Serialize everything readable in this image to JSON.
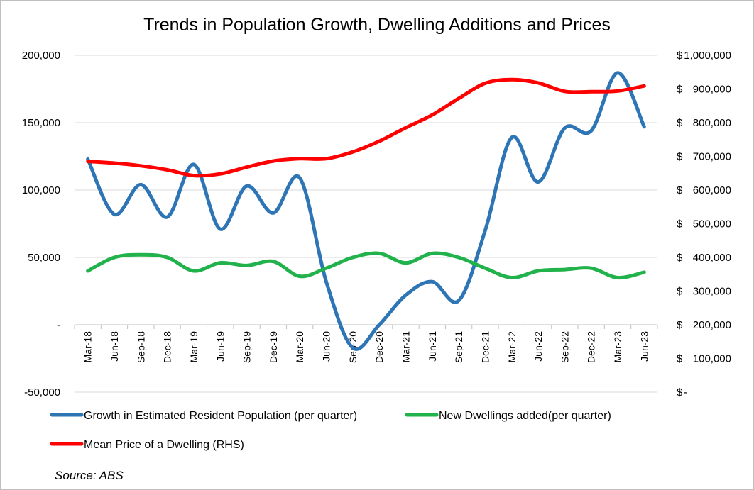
{
  "chart_data": {
    "type": "line",
    "title": "Trends in Population Growth, Dwelling Additions and Prices",
    "source": "Source: ABS",
    "categories": [
      "Mar-18",
      "Jun-18",
      "Sep-18",
      "Dec-18",
      "Mar-19",
      "Jun-19",
      "Sep-19",
      "Dec-19",
      "Mar-20",
      "Jun-20",
      "Sep-20",
      "Dec-20",
      "Mar-21",
      "Jun-21",
      "Sep-21",
      "Dec-21",
      "Mar-22",
      "Jun-22",
      "Sep-22",
      "Dec-22",
      "Mar-23",
      "Jun-23"
    ],
    "left_axis": {
      "ylim": [
        -50000,
        200000
      ],
      "tick_values": [
        -50000,
        0,
        50000,
        100000,
        150000,
        200000
      ],
      "tick_labels": [
        "-50,000",
        "-",
        "50,000",
        "100,000",
        "150,000",
        "200,000"
      ]
    },
    "right_axis": {
      "ylim": [
        0,
        1000000
      ],
      "tick_values": [
        0,
        100000,
        200000,
        300000,
        400000,
        500000,
        600000,
        700000,
        800000,
        900000,
        1000000
      ],
      "tick_labels": [
        "$-",
        "$100,000",
        "$200,000",
        "$300,000",
        "$400,000",
        "$500,000",
        "$600,000",
        "$700,000",
        "$800,000",
        "$900,000",
        "$1,000,000"
      ]
    },
    "grid": true,
    "legend_position": "bottom",
    "series": [
      {
        "name": "Growth in Estimated Resident Population (per quarter)",
        "axis": "left",
        "color": "#2e75b6",
        "values": [
          123000,
          82000,
          104000,
          80000,
          119000,
          71000,
          103000,
          83000,
          109000,
          32000,
          -17000,
          0,
          22000,
          32000,
          18000,
          70000,
          139000,
          106000,
          146000,
          144000,
          187000,
          147000
        ]
      },
      {
        "name": "New Dwellings added(per quarter)",
        "axis": "left",
        "color": "#21b24b",
        "values": [
          40000,
          50000,
          52000,
          50000,
          40000,
          46000,
          44000,
          47000,
          36000,
          42000,
          50000,
          53000,
          46000,
          53000,
          50000,
          42000,
          35000,
          40000,
          41000,
          42000,
          35000,
          39000
        ]
      },
      {
        "name": "Mean Price of a Dwelling (RHS)",
        "axis": "right",
        "color": "#ff0000",
        "values": [
          685000,
          680000,
          672000,
          660000,
          643000,
          648000,
          668000,
          686000,
          693000,
          693000,
          713000,
          745000,
          785000,
          823000,
          872000,
          917000,
          928000,
          918000,
          893000,
          892000,
          894000,
          909000
        ]
      }
    ]
  }
}
